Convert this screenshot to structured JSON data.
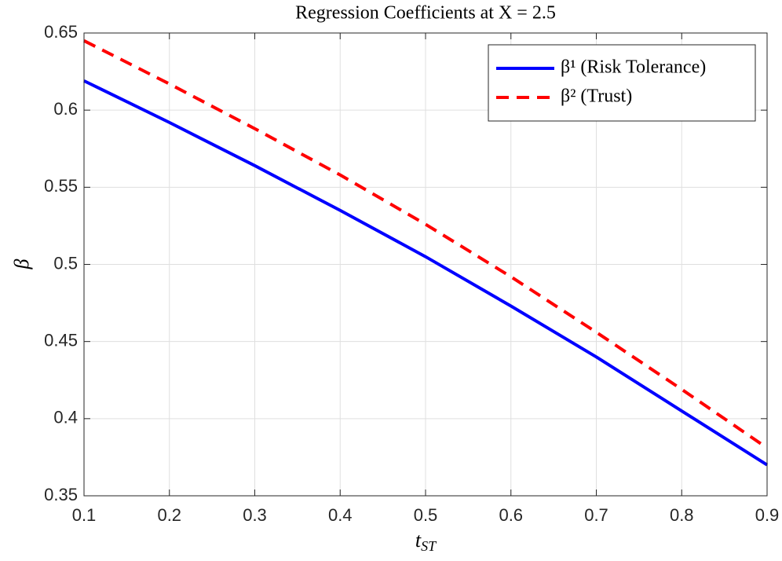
{
  "chart_data": {
    "type": "line",
    "title": "Regression Coefficients at X = 2.5",
    "xlabel": {
      "text": "t",
      "subscript": "ST"
    },
    "ylabel": "β",
    "x": [
      0.1,
      0.2,
      0.3,
      0.4,
      0.5,
      0.6,
      0.7,
      0.8,
      0.9
    ],
    "series": [
      {
        "name": "β¹ (Risk Tolerance)",
        "color": "#0000ff",
        "dash": "solid",
        "values": [
          0.619,
          0.592,
          0.564,
          0.535,
          0.505,
          0.473,
          0.44,
          0.405,
          0.37
        ]
      },
      {
        "name": "β² (Trust)",
        "color": "#ff0000",
        "dash": "dashed",
        "values": [
          0.645,
          0.617,
          0.588,
          0.558,
          0.526,
          0.492,
          0.456,
          0.419,
          0.381
        ]
      }
    ],
    "xlim": [
      0.1,
      0.9
    ],
    "xticks": [
      0.1,
      0.2,
      0.3,
      0.4,
      0.5,
      0.6,
      0.7,
      0.8,
      0.9
    ],
    "ylim": [
      0.35,
      0.65
    ],
    "yticks": [
      0.35,
      0.4,
      0.45,
      0.5,
      0.55,
      0.6,
      0.65
    ],
    "grid": true,
    "legend": "northeast"
  }
}
